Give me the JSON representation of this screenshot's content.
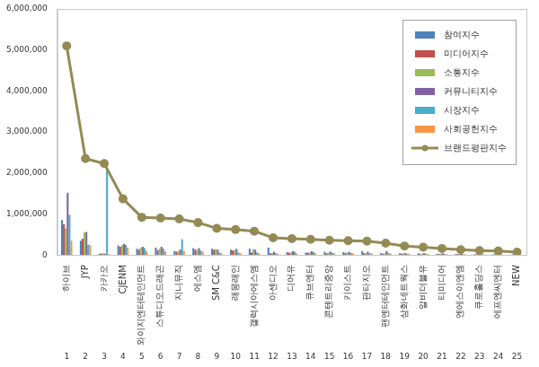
{
  "chart_data": {
    "type": "bar",
    "categories": [
      "하이브",
      "JYP",
      "카카오",
      "CJENM",
      "와이지엔터테인먼트",
      "스튜디오드래곤",
      "지니뮤직",
      "에스엠",
      "SM C&C",
      "래몽래인",
      "갤럭시아에스엠",
      "아센디오",
      "디어유",
      "큐브엔터",
      "콘텐트리중앙",
      "키이스트",
      "판타지오",
      "팬엔터테인먼트",
      "삼화네트웍스",
      "알비더블유",
      "티미디어",
      "엔에스이엔엠",
      "큐로홀딩스",
      "에프엔씨엔터",
      "NEW"
    ],
    "rank_labels": [
      1,
      2,
      3,
      4,
      5,
      6,
      7,
      8,
      9,
      10,
      11,
      12,
      13,
      14,
      15,
      16,
      17,
      18,
      19,
      20,
      21,
      22,
      23,
      24,
      25
    ],
    "series": [
      {
        "name": "참여지수",
        "type": "bar",
        "color": "#4f81bd",
        "values": [
          850000,
          350000,
          30000,
          230000,
          150000,
          180000,
          100000,
          170000,
          150000,
          130000,
          150000,
          180000,
          70000,
          60000,
          80000,
          70000,
          90000,
          40000,
          40000,
          40000,
          30000,
          25000,
          20000,
          20000,
          15000
        ]
      },
      {
        "name": "미디어지수",
        "type": "bar",
        "color": "#c0504d",
        "values": [
          750000,
          400000,
          30000,
          200000,
          130000,
          120000,
          80000,
          130000,
          130000,
          110000,
          60000,
          40000,
          60000,
          60000,
          40000,
          50000,
          40000,
          30000,
          30000,
          20000,
          20000,
          20000,
          15000,
          15000,
          10000
        ]
      },
      {
        "name": "소통지수",
        "type": "bar",
        "color": "#9bbb59",
        "values": [
          650000,
          550000,
          40000,
          240000,
          180000,
          150000,
          90000,
          130000,
          140000,
          120000,
          140000,
          50000,
          60000,
          60000,
          60000,
          60000,
          50000,
          40000,
          40000,
          30000,
          30000,
          25000,
          20000,
          20000,
          15000
        ]
      },
      {
        "name": "커뮤니티지수",
        "type": "bar",
        "color": "#8064a2",
        "values": [
          1520000,
          560000,
          30000,
          270000,
          200000,
          200000,
          130000,
          170000,
          130000,
          150000,
          130000,
          80000,
          90000,
          90000,
          80000,
          80000,
          80000,
          100000,
          50000,
          50000,
          40000,
          30000,
          25000,
          20000,
          15000
        ]
      },
      {
        "name": "시장지수",
        "type": "bar",
        "color": "#4bacc6",
        "values": [
          980000,
          250000,
          2080000,
          250000,
          170000,
          160000,
          380000,
          110000,
          60000,
          60000,
          60000,
          40000,
          80000,
          70000,
          60000,
          50000,
          40000,
          40000,
          30000,
          25000,
          20000,
          15000,
          15000,
          15000,
          10000
        ]
      },
      {
        "name": "사회공헌지수",
        "type": "bar",
        "color": "#f79646",
        "values": [
          350000,
          240000,
          20000,
          180000,
          90000,
          90000,
          100000,
          80000,
          40000,
          50000,
          40000,
          30000,
          40000,
          40000,
          40000,
          40000,
          40000,
          40000,
          30000,
          25000,
          20000,
          15000,
          15000,
          10000,
          5000
        ]
      },
      {
        "name": "브랜드평판지수",
        "type": "line",
        "color": "#948a54",
        "marker": "circle",
        "line_style": "solid",
        "values": [
          5100000,
          2350000,
          2230000,
          1370000,
          920000,
          900000,
          880000,
          790000,
          650000,
          620000,
          580000,
          420000,
          400000,
          380000,
          360000,
          350000,
          340000,
          290000,
          220000,
          190000,
          160000,
          130000,
          110000,
          100000,
          70000
        ]
      }
    ],
    "ylim": [
      0,
      6000000
    ],
    "yticks": [
      0,
      {
        "value": 1000000,
        "label": "1,000,000"
      },
      {
        "value": 2000000,
        "label": "2,000,000"
      },
      {
        "value": 3000000,
        "label": "3,000,000"
      },
      {
        "value": 4000000,
        "label": "4,000,000"
      },
      {
        "value": 5000000,
        "label": "5,000,000"
      },
      {
        "value": 6000000,
        "label": "6,000,000"
      }
    ],
    "grid": false,
    "legend": "top-right"
  }
}
